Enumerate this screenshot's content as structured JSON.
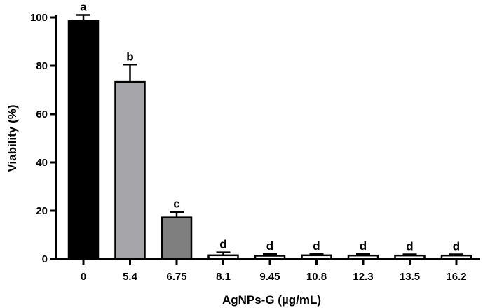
{
  "chart_data": {
    "type": "bar",
    "xlabel": "AgNPs-G (µg/mL)",
    "ylabel": "Viability (%)",
    "ylim": [
      0,
      100
    ],
    "yticks": [
      "0",
      "20",
      "40",
      "60",
      "80",
      "100"
    ],
    "categories": [
      "0",
      "5.4",
      "6.75",
      "8.1",
      "9.45",
      "10.8",
      "12.3",
      "13.5",
      "16.2"
    ],
    "values": [
      98.5,
      73.3,
      17.2,
      1.5,
      1.3,
      1.5,
      1.4,
      1.4,
      1.4
    ],
    "errors": [
      2.5,
      7.2,
      2.3,
      1.2,
      0.7,
      0.5,
      0.7,
      0.5,
      0.5
    ],
    "significance_letters": [
      "a",
      "b",
      "c",
      "d",
      "d",
      "d",
      "d",
      "d",
      "d"
    ],
    "bar_colors": [
      "#000000",
      "#a6a6aa",
      "#7f7f7f",
      "#ffffff",
      "#ffffff",
      "#ffffff",
      "#ffffff",
      "#ffffff",
      "#ffffff"
    ],
    "grid": false,
    "legend": "none"
  }
}
